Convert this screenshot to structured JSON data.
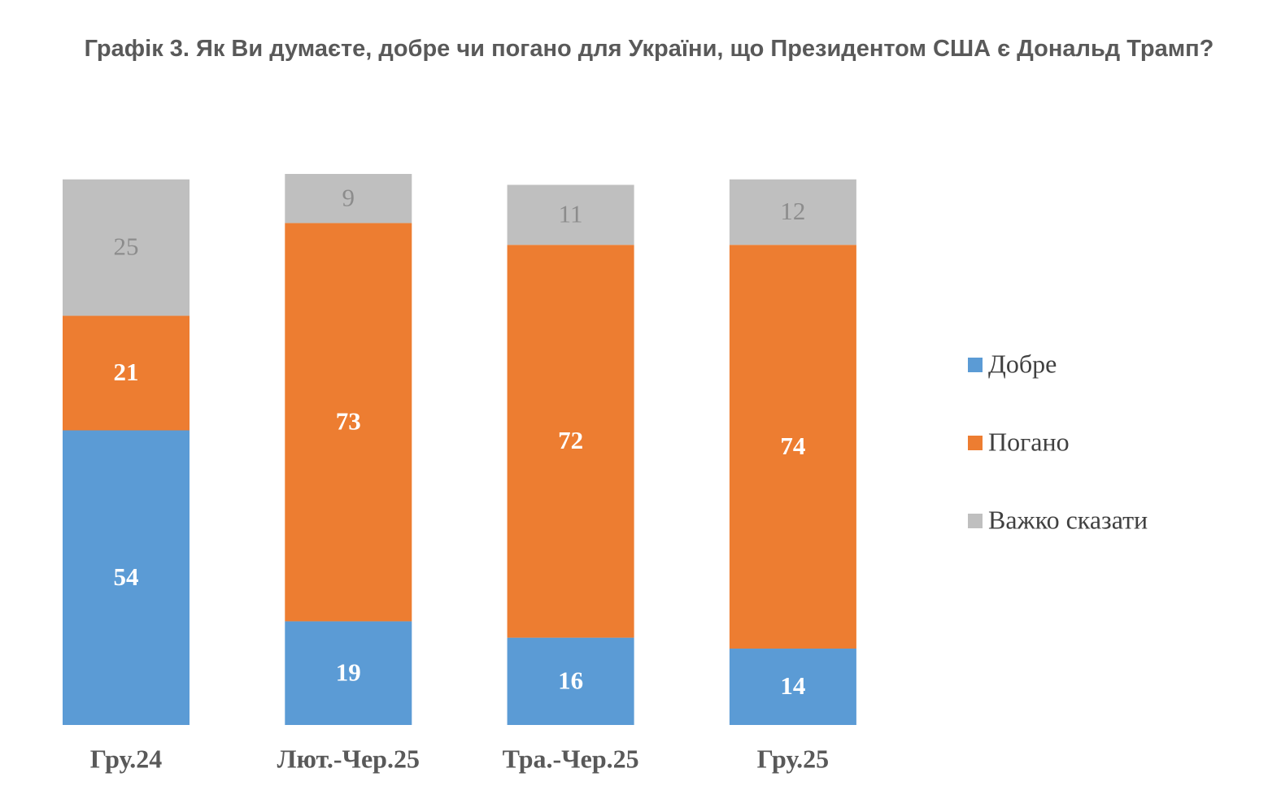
{
  "chart_data": {
    "type": "stacked-bar",
    "title": "Графік 3. Як Ви думаєте, добре чи погано для України, що Президентом США є Дональд Трамп?",
    "categories": [
      "Гру.24",
      "Лют.-Чер.25",
      "Тра.-Чер.25",
      "Гру.25"
    ],
    "series": [
      {
        "name": "Добре",
        "color": "#5b9bd5",
        "values": [
          54,
          19,
          16,
          14
        ]
      },
      {
        "name": "Погано",
        "color": "#ed7d31",
        "values": [
          21,
          73,
          72,
          74
        ]
      },
      {
        "name": "Важко сказати",
        "color": "#bfbfbf",
        "values": [
          25,
          9,
          11,
          12
        ]
      }
    ],
    "legend": "right"
  }
}
